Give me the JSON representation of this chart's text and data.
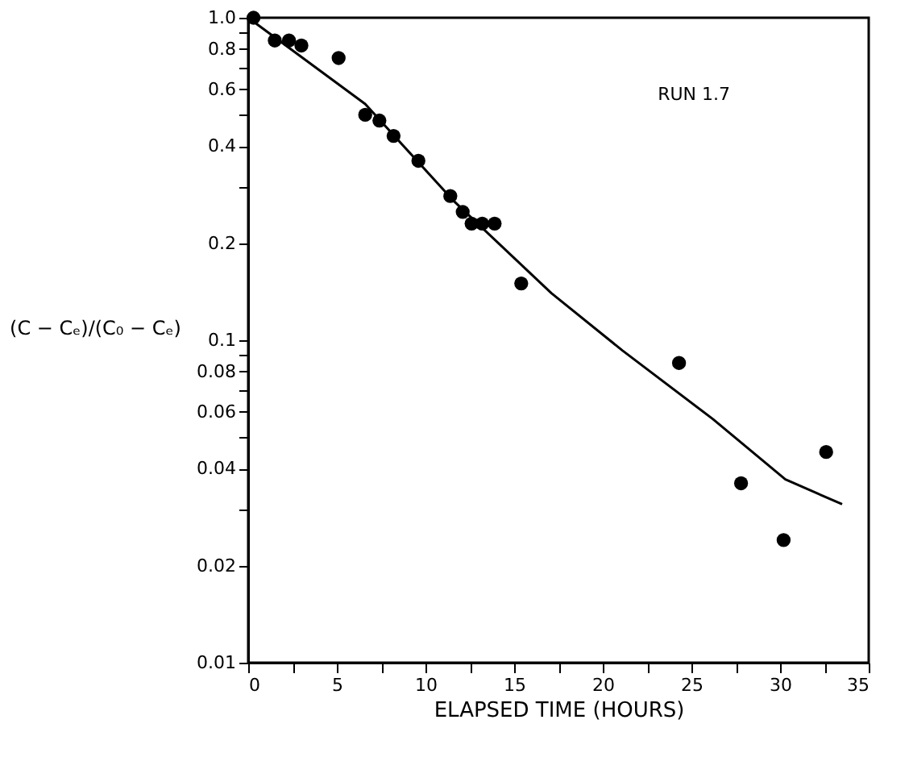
{
  "chart_data": {
    "type": "scatter",
    "xlabel": "ELAPSED TIME (HOURS)",
    "ylabel": "(C − Cₑ)/(C₀ − Cₑ)",
    "annotations": [
      "RUN 1.7"
    ],
    "log": "y",
    "grid": false,
    "xlim": [
      0,
      35
    ],
    "ylim": [
      0.01,
      1.0
    ],
    "xticks": [
      0,
      {
        "value": 2.5,
        "label": null
      },
      5,
      {
        "value": 7.5,
        "label": null
      },
      10,
      {
        "value": 12.5,
        "label": null
      },
      15,
      {
        "value": 17.5,
        "label": null
      },
      20,
      {
        "value": 22.5,
        "label": null
      },
      25,
      {
        "value": 27.5,
        "label": null
      },
      30,
      {
        "value": 32.5,
        "label": null
      },
      35
    ],
    "yticks": [
      0.01,
      0.02,
      {
        "value": 0.03,
        "label": null
      },
      0.04,
      {
        "value": 0.05,
        "label": null
      },
      0.06,
      {
        "value": 0.07,
        "label": null
      },
      0.08,
      {
        "value": 0.09,
        "label": null
      },
      0.1,
      0.2,
      {
        "value": 0.3,
        "label": null
      },
      0.4,
      {
        "value": 0.5,
        "label": null
      },
      0.6,
      {
        "value": 0.7,
        "label": null
      },
      0.8,
      {
        "value": 0.9,
        "label": null
      },
      {
        "value": 1.0,
        "label": "1.0"
      }
    ],
    "series": [
      {
        "type": "scatter",
        "marker": "circle",
        "color": "#000000",
        "x": [
          0.3,
          1.5,
          2.3,
          3.0,
          5.1,
          6.6,
          7.4,
          8.2,
          9.6,
          11.4,
          12.1,
          12.6,
          13.2,
          13.9,
          15.4,
          24.3,
          27.8,
          30.2,
          32.6
        ],
        "values": [
          1.0,
          0.85,
          0.85,
          0.82,
          0.75,
          0.5,
          0.48,
          0.43,
          0.36,
          0.28,
          0.25,
          0.23,
          0.23,
          0.23,
          0.15,
          0.085,
          0.036,
          0.024,
          0.045
        ]
      },
      {
        "type": "line",
        "marker": "none",
        "line_style": "solid",
        "color": "#000000",
        "x": [
          0,
          6.6,
          11.6,
          17.1,
          21.1,
          26.2,
          30.3,
          33.5
        ],
        "values": [
          1.0,
          0.54,
          0.27,
          0.14,
          0.093,
          0.057,
          0.037,
          0.031
        ]
      }
    ]
  }
}
